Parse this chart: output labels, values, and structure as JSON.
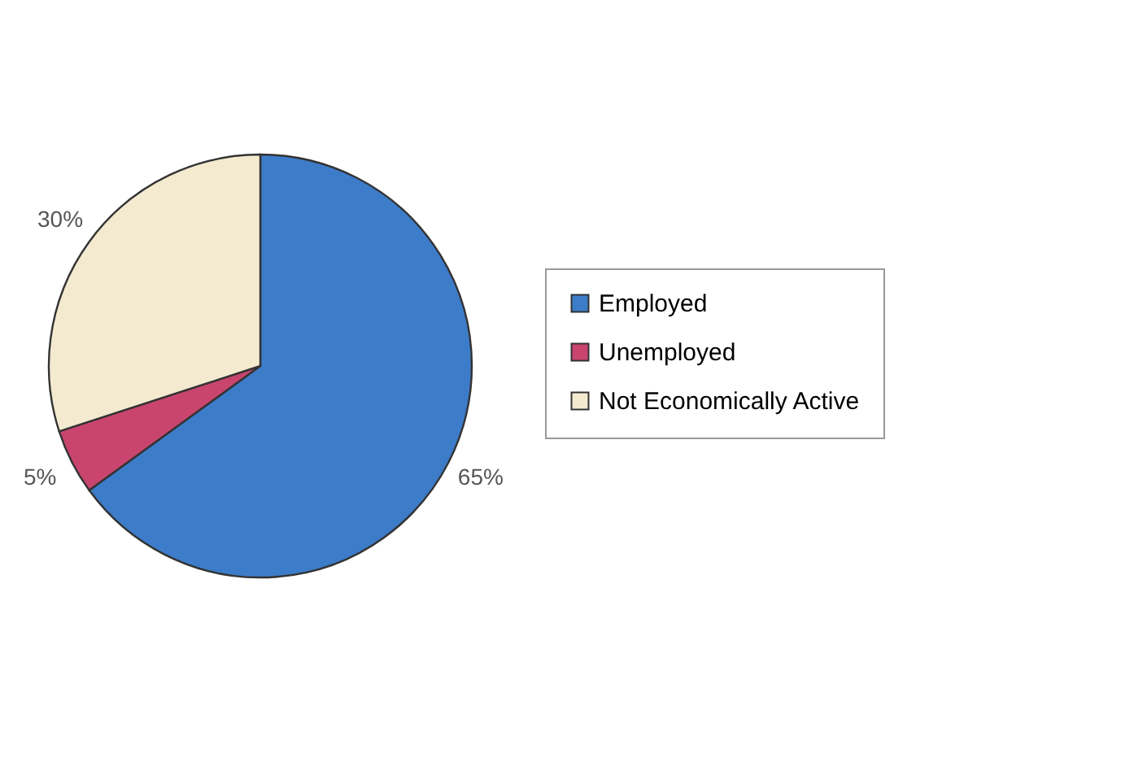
{
  "chart_data": {
    "type": "pie",
    "categories": [
      "Employed",
      "Unemployed",
      "Not Economically Active"
    ],
    "values": [
      65,
      5,
      30
    ],
    "colors": [
      "#3d7cc9",
      "#c9456f",
      "#f3ead0"
    ],
    "value_labels": [
      "65%",
      "5%",
      "30%"
    ],
    "legend": "right"
  }
}
